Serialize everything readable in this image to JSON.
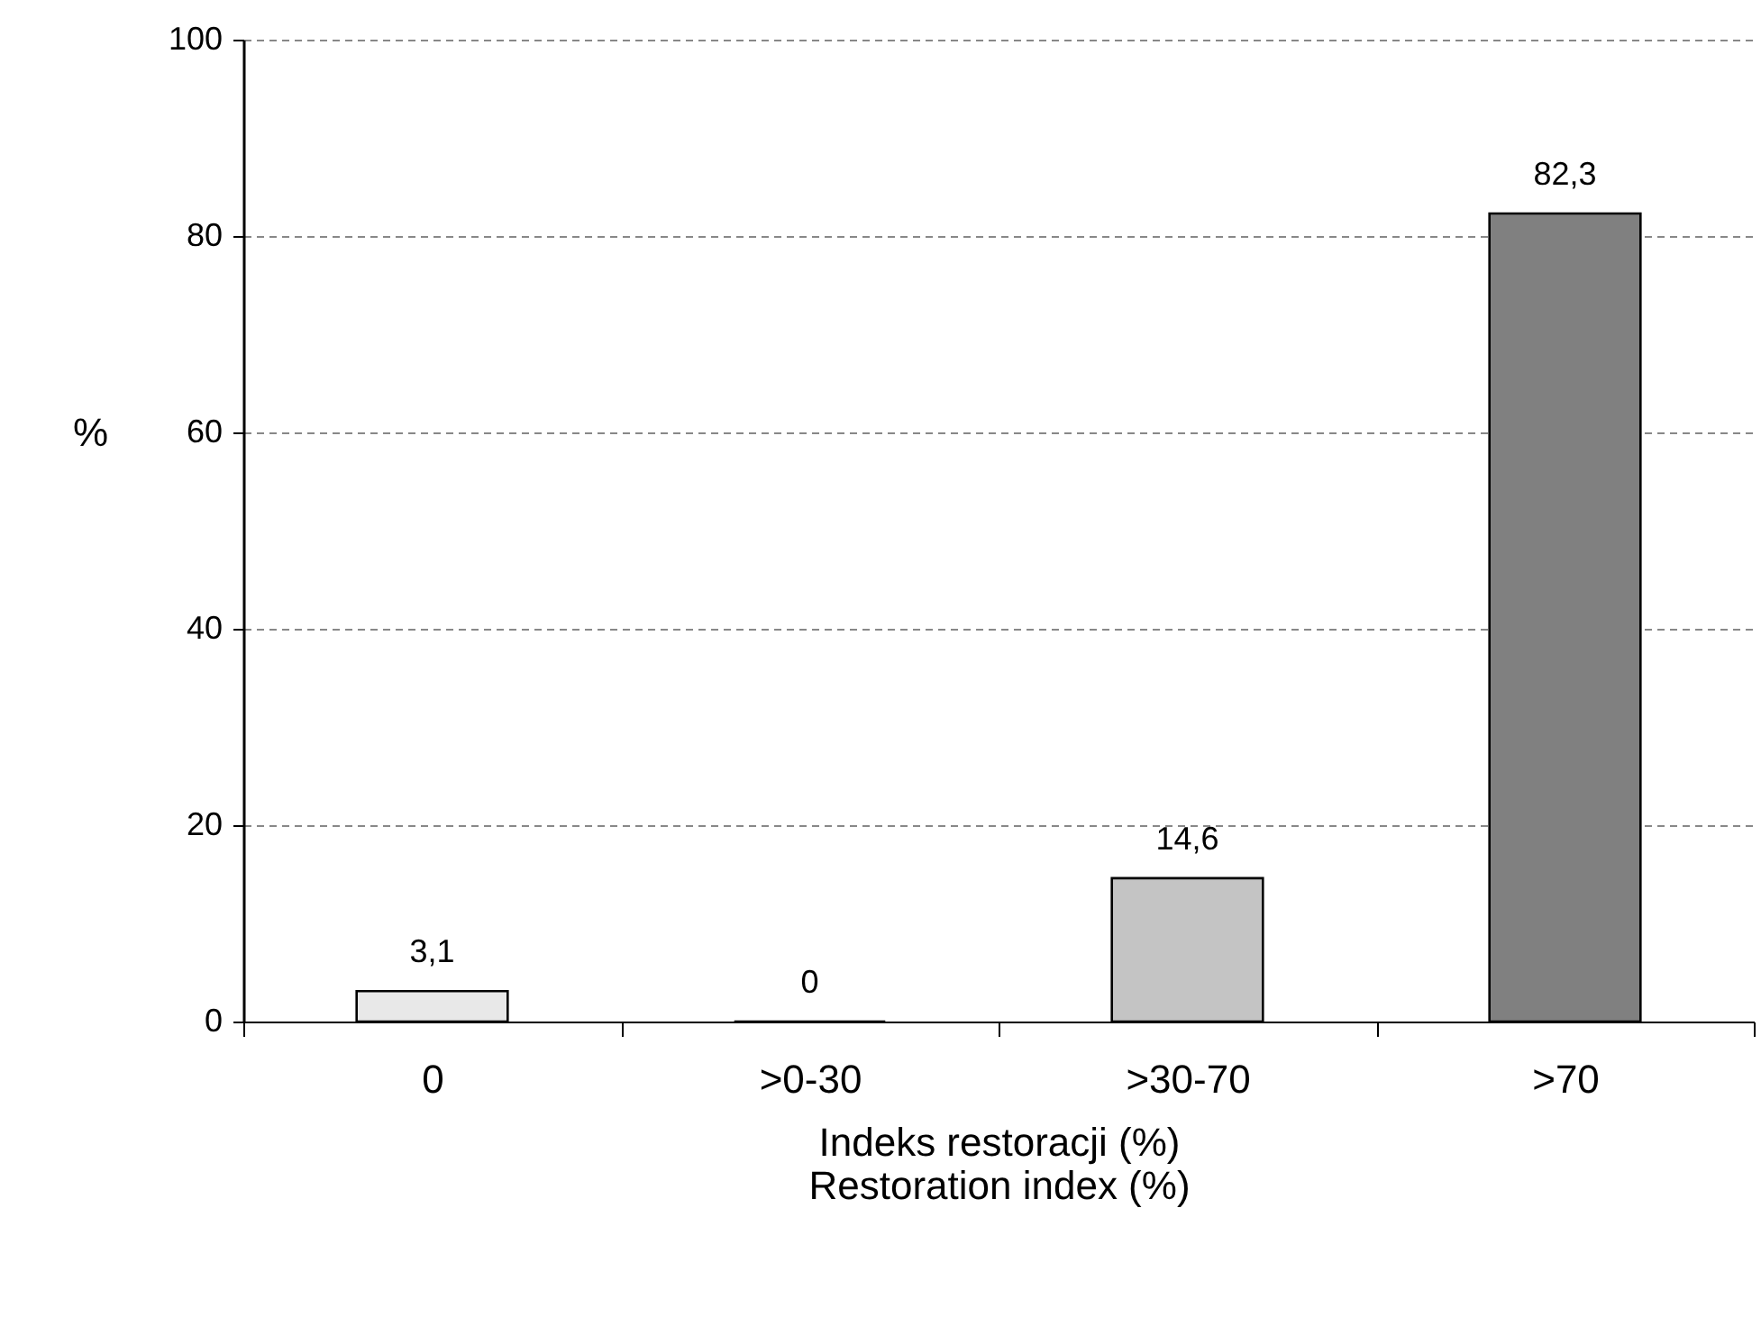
{
  "chart_data": {
    "type": "bar",
    "categories": [
      "0",
      ">0-30",
      ">30-70",
      ">70"
    ],
    "values": [
      3.1,
      0,
      14.6,
      82.3
    ],
    "colors": [
      "#e8e8e8",
      "#000000",
      "#c4c4c4",
      "#808080"
    ],
    "value_labels": [
      "3,1",
      "0",
      "14,6",
      "82,3"
    ],
    "xlabel": "Indeks restoracji (%)\nRestoration index (%)",
    "ylabel": "%",
    "ylim": [
      0,
      100
    ],
    "yticks": [
      0,
      20,
      40,
      60,
      80,
      100
    ],
    "grid": "y"
  }
}
